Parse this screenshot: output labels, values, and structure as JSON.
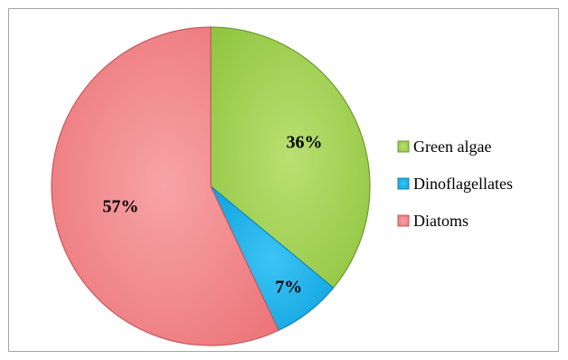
{
  "chart_data": {
    "type": "pie",
    "title": "",
    "categories": [
      "Green algae",
      "Dinoflagellates",
      "Diatoms"
    ],
    "values": [
      36,
      7,
      57
    ],
    "value_labels": [
      "36%",
      "7%",
      "57%"
    ],
    "colors": [
      "#9acd4a",
      "#1aaee8",
      "#ee7a7e"
    ],
    "start_angle": "12 o'clock",
    "direction": "clockwise",
    "legend": {
      "placement": "right",
      "entries": [
        "Green algae",
        "Dinoflagellates",
        "Diatoms"
      ]
    }
  }
}
